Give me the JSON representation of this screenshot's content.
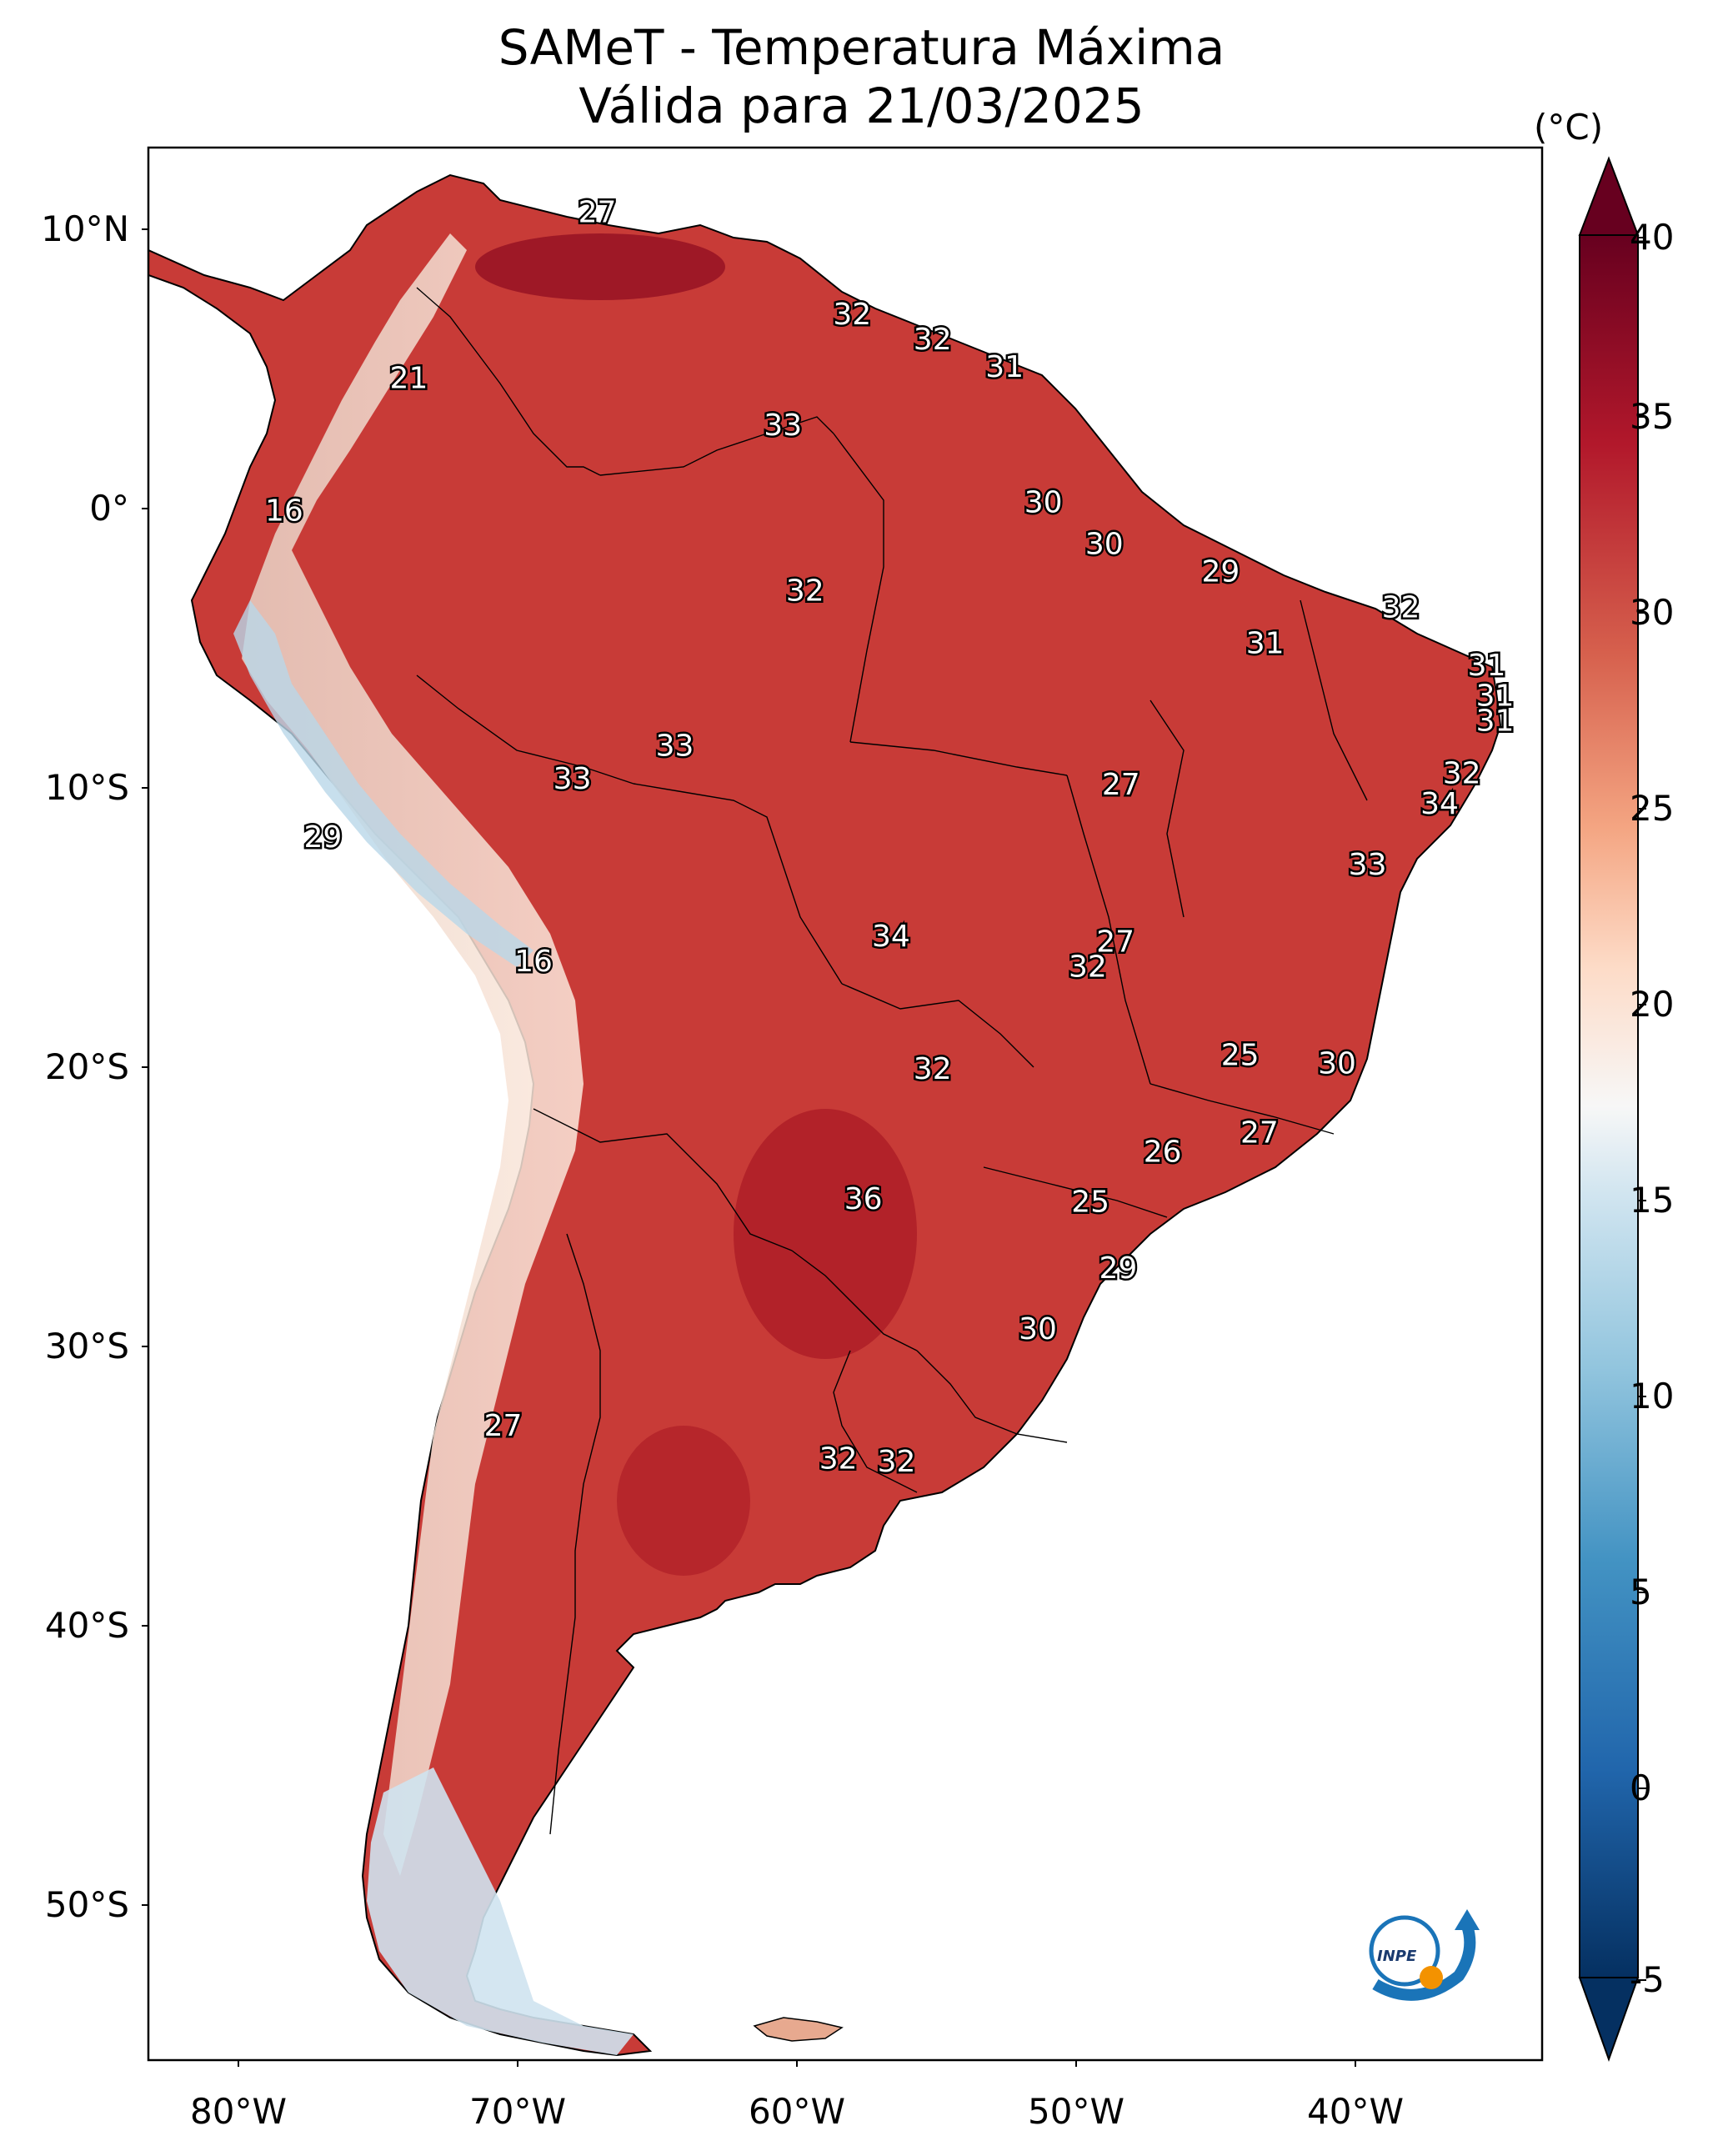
{
  "title_line1": "SAMeT - Temperatura Máxima",
  "title_line2": "Válida para 21/03/2025",
  "colorbar": {
    "unit": "(°C)",
    "ticks": [
      "40",
      "35",
      "30",
      "25",
      "20",
      "15",
      "10",
      "5",
      "0",
      "-5"
    ],
    "range": [
      -7,
      42
    ],
    "colors": [
      "#053061",
      "#2166ac",
      "#4393c3",
      "#92c5de",
      "#d1e5f0",
      "#f7f7f7",
      "#fddbc7",
      "#f4a582",
      "#d6604d",
      "#b2182b",
      "#67001f"
    ]
  },
  "lat_labels": [
    "10°N",
    "0°",
    "10°S",
    "20°S",
    "30°S",
    "40°S",
    "50°S"
  ],
  "lon_labels": [
    "80°W",
    "70°W",
    "60°W",
    "50°W",
    "40°W"
  ],
  "logo_text": "INPE",
  "temperature_labels": [
    {
      "value": "27",
      "lon": -67,
      "lat": 10.5
    },
    {
      "value": "32",
      "lon": -57.8,
      "lat": 6.8
    },
    {
      "value": "32",
      "lon": -54.9,
      "lat": 5.9
    },
    {
      "value": "31",
      "lon": -52.3,
      "lat": 4.9
    },
    {
      "value": "21",
      "lon": -73.8,
      "lat": 4.5
    },
    {
      "value": "33",
      "lon": -60.3,
      "lat": 2.8
    },
    {
      "value": "16",
      "lon": -78.3,
      "lat": -0.3
    },
    {
      "value": "30",
      "lon": -50.9,
      "lat": 0.0
    },
    {
      "value": "30",
      "lon": -48.7,
      "lat": -1.5
    },
    {
      "value": "29",
      "lon": -44.5,
      "lat": -2.5
    },
    {
      "value": "32",
      "lon": -59.5,
      "lat": -3.2
    },
    {
      "value": "32",
      "lon": -38,
      "lat": -3.8
    },
    {
      "value": "31",
      "lon": -42.9,
      "lat": -5.1
    },
    {
      "value": "31",
      "lon": -34.9,
      "lat": -5.9
    },
    {
      "value": "31",
      "lon": -34.6,
      "lat": -7.0
    },
    {
      "value": "31",
      "lon": -34.6,
      "lat": -7.9
    },
    {
      "value": "33",
      "lon": -64.2,
      "lat": -8.8
    },
    {
      "value": "33",
      "lon": -67.9,
      "lat": -10.0
    },
    {
      "value": "32",
      "lon": -35.8,
      "lat": -9.8
    },
    {
      "value": "27",
      "lon": -48.1,
      "lat": -10.2
    },
    {
      "value": "34",
      "lon": -36.6,
      "lat": -10.9
    },
    {
      "value": "29",
      "lon": -76.9,
      "lat": -12.1
    },
    {
      "value": "33",
      "lon": -39.2,
      "lat": -13.1
    },
    {
      "value": "34",
      "lon": -56.4,
      "lat": -15.7
    },
    {
      "value": "27",
      "lon": -48.3,
      "lat": -15.9
    },
    {
      "value": "16",
      "lon": -69.3,
      "lat": -16.6
    },
    {
      "value": "32",
      "lon": -49.3,
      "lat": -16.8
    },
    {
      "value": "25",
      "lon": -43.8,
      "lat": -20.0
    },
    {
      "value": "30",
      "lon": -40.3,
      "lat": -20.3
    },
    {
      "value": "32",
      "lon": -54.9,
      "lat": -20.5
    },
    {
      "value": "27",
      "lon": -43.1,
      "lat": -22.8
    },
    {
      "value": "26",
      "lon": -46.6,
      "lat": -23.5
    },
    {
      "value": "36",
      "lon": -57.4,
      "lat": -25.2
    },
    {
      "value": "25",
      "lon": -49.2,
      "lat": -25.3
    },
    {
      "value": "29",
      "lon": -48.2,
      "lat": -27.7
    },
    {
      "value": "30",
      "lon": -51.1,
      "lat": -29.9
    },
    {
      "value": "27",
      "lon": -70.4,
      "lat": -33.4
    },
    {
      "value": "32",
      "lon": -58.3,
      "lat": -34.6
    },
    {
      "value": "32",
      "lon": -56.2,
      "lat": -34.7
    }
  ]
}
